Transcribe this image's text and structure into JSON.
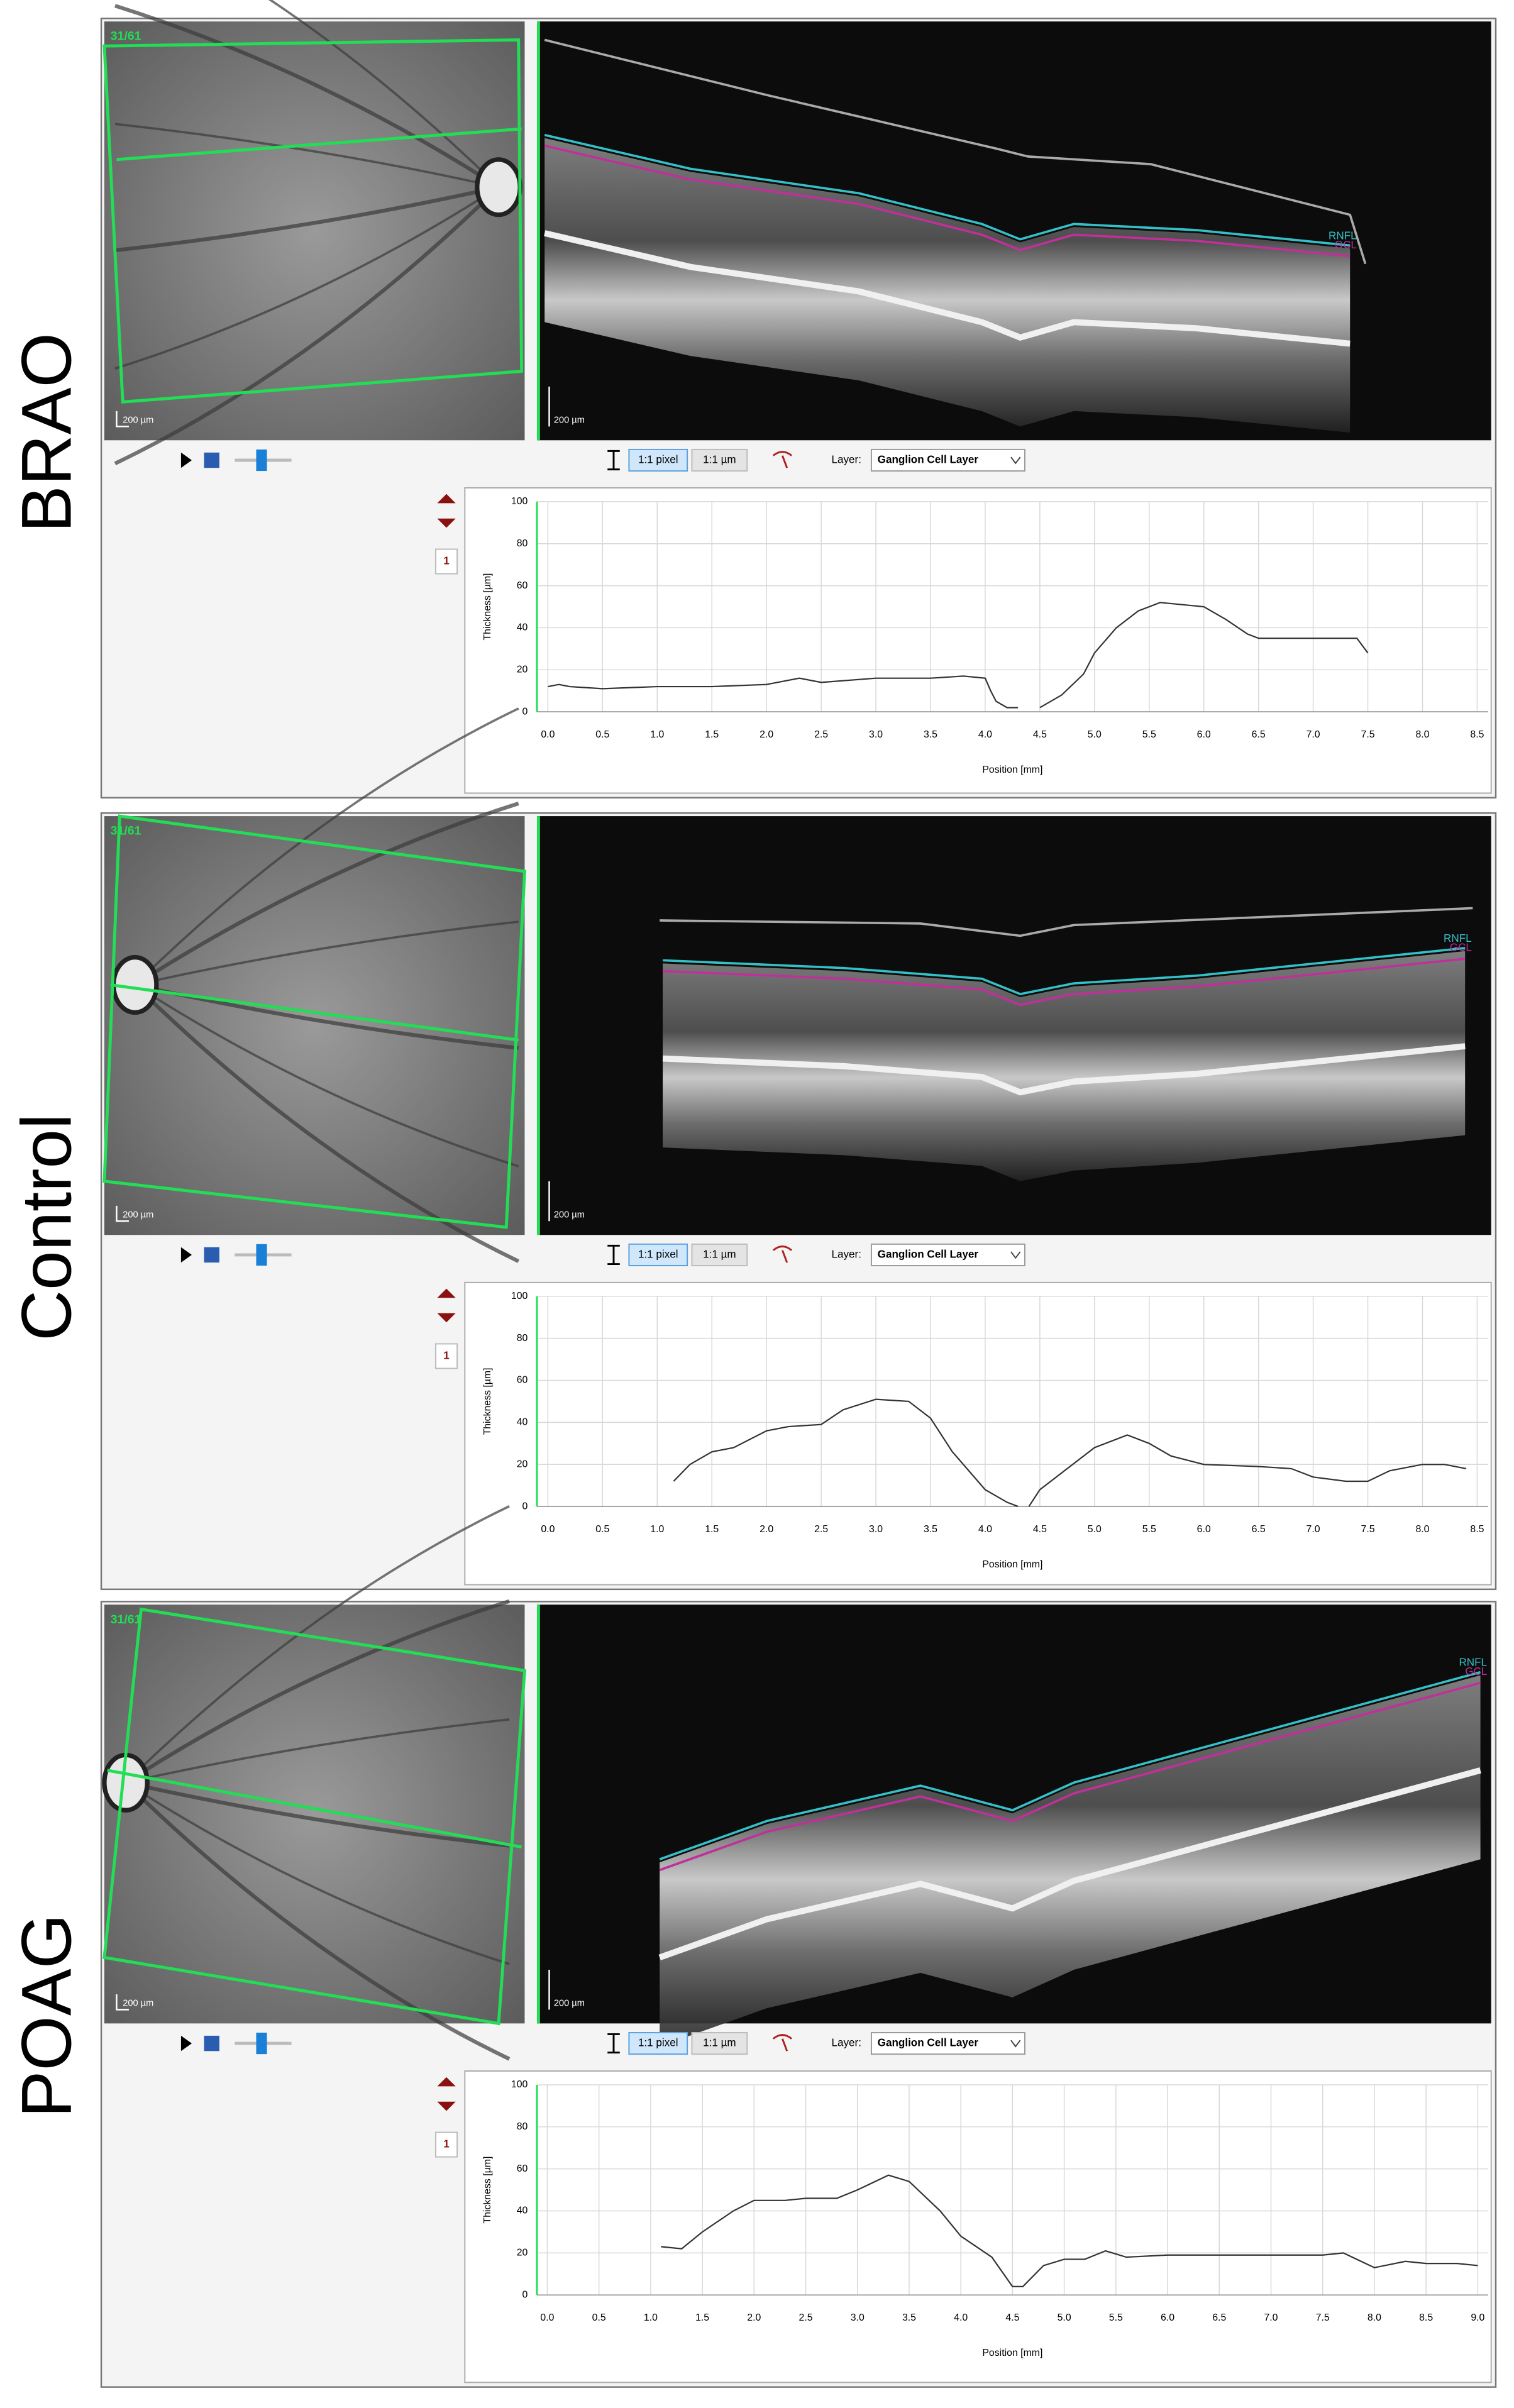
{
  "panels": [
    {
      "label": "BRAO",
      "fundus": {
        "frame": "31/61",
        "scale": "200 µm"
      },
      "oct": {
        "scale": "200 µm",
        "layers": [
          "RNFL",
          "GCL"
        ]
      },
      "toolbar": {
        "buttons": [
          "1:1 pixel",
          "1:1 µm"
        ],
        "layer_label": "Layer:",
        "layer": "Ganglion Cell Layer",
        "page": "1"
      }
    },
    {
      "label": "Control",
      "fundus": {
        "frame": "31/61",
        "scale": "200 µm"
      },
      "oct": {
        "scale": "200 µm",
        "layers": [
          "RNFL",
          "GCL"
        ]
      },
      "toolbar": {
        "buttons": [
          "1:1 pixel",
          "1:1 µm"
        ],
        "layer_label": "Layer:",
        "layer": "Ganglion Cell Layer",
        "page": "1"
      }
    },
    {
      "label": "POAG",
      "fundus": {
        "frame": "31/61",
        "scale": "200 µm"
      },
      "oct": {
        "scale": "200 µm",
        "layers": [
          "RNFL",
          "GCL"
        ]
      },
      "toolbar": {
        "buttons": [
          "1:1 pixel",
          "1:1 µm"
        ],
        "layer_label": "Layer:",
        "layer": "Ganglion Cell Layer",
        "page": "1"
      }
    }
  ],
  "chart_data": [
    {
      "type": "line",
      "x_label": "Position [mm]",
      "y_label": "Thickness [µm]",
      "color": "#333333",
      "grid": true,
      "x": [
        0,
        0.1,
        0.2,
        0.5,
        1.0,
        1.5,
        2.0,
        2.3,
        2.5,
        3.0,
        3.5,
        3.8,
        4.0,
        4.05,
        4.1,
        4.2,
        4.3,
        4.4,
        4.5,
        4.7,
        4.9,
        5.0,
        5.2,
        5.4,
        5.6,
        5.8,
        6.0,
        6.2,
        6.4,
        6.5,
        7.0,
        7.4,
        7.5
      ],
      "values": [
        12,
        13,
        12,
        11,
        12,
        12,
        13,
        16,
        14,
        16,
        16,
        17,
        16,
        10,
        5,
        2,
        2,
        null,
        2,
        8,
        18,
        28,
        40,
        48,
        52,
        51,
        50,
        44,
        37,
        35,
        35,
        35,
        28
      ],
      "xlim": [
        -0.1,
        8.6
      ],
      "ylim": [
        0,
        100
      ],
      "yticks": [
        0,
        20,
        40,
        60,
        80,
        100
      ],
      "xticks": [
        {
          "value": 0,
          "label": "0.0"
        },
        0.5,
        {
          "value": 1,
          "label": "1.0"
        },
        1.5,
        {
          "value": 2,
          "label": "2.0"
        },
        2.5,
        {
          "value": 3,
          "label": "3.0"
        },
        3.5,
        {
          "value": 4,
          "label": "4.0"
        },
        4.5,
        {
          "value": 5,
          "label": "5.0"
        },
        5.5,
        {
          "value": 6,
          "label": "6.0"
        },
        6.5,
        {
          "value": 7,
          "label": "7.0"
        },
        7.5,
        {
          "value": 8,
          "label": "8.0"
        },
        8.5
      ]
    },
    {
      "type": "line",
      "x_label": "Position [mm]",
      "y_label": "Thickness [µm]",
      "color": "#333333",
      "grid": true,
      "x": [
        1.15,
        1.3,
        1.5,
        1.7,
        2.0,
        2.2,
        2.5,
        2.7,
        3.0,
        3.3,
        3.5,
        3.7,
        4.0,
        4.2,
        4.3,
        4.35,
        4.4,
        4.5,
        4.7,
        5.0,
        5.3,
        5.5,
        5.7,
        6.0,
        6.5,
        6.8,
        7.0,
        7.3,
        7.5,
        7.7,
        8.0,
        8.2,
        8.4
      ],
      "values": [
        12,
        20,
        26,
        28,
        36,
        38,
        39,
        46,
        51,
        50,
        42,
        26,
        8,
        2,
        0,
        null,
        0,
        8,
        16,
        28,
        34,
        30,
        24,
        20,
        19,
        18,
        14,
        12,
        12,
        17,
        20,
        20,
        18
      ],
      "xlim": [
        -0.1,
        8.6
      ],
      "ylim": [
        0,
        100
      ],
      "yticks": [
        0,
        20,
        40,
        60,
        80,
        100
      ],
      "xticks": [
        {
          "value": 0,
          "label": "0.0"
        },
        0.5,
        {
          "value": 1,
          "label": "1.0"
        },
        1.5,
        {
          "value": 2,
          "label": "2.0"
        },
        2.5,
        {
          "value": 3,
          "label": "3.0"
        },
        3.5,
        {
          "value": 4,
          "label": "4.0"
        },
        4.5,
        {
          "value": 5,
          "label": "5.0"
        },
        5.5,
        {
          "value": 6,
          "label": "6.0"
        },
        6.5,
        {
          "value": 7,
          "label": "7.0"
        },
        7.5,
        {
          "value": 8,
          "label": "8.0"
        },
        8.5
      ]
    },
    {
      "type": "line",
      "x_label": "Position [mm]",
      "y_label": "Thickness [µm]",
      "color": "#333333",
      "grid": true,
      "x": [
        1.1,
        1.3,
        1.5,
        1.8,
        2.0,
        2.3,
        2.5,
        2.8,
        3.0,
        3.3,
        3.5,
        3.8,
        4.0,
        4.3,
        4.5,
        4.6,
        4.8,
        5.0,
        5.2,
        5.4,
        5.6,
        6.0,
        6.5,
        7.0,
        7.5,
        7.7,
        8.0,
        8.3,
        8.5,
        8.8,
        9.0
      ],
      "values": [
        23,
        22,
        30,
        40,
        45,
        45,
        46,
        46,
        50,
        57,
        54,
        40,
        28,
        18,
        4,
        4,
        14,
        17,
        17,
        21,
        18,
        19,
        19,
        19,
        19,
        20,
        13,
        16,
        15,
        15,
        14
      ],
      "xlim": [
        -0.1,
        9.1
      ],
      "ylim": [
        0,
        100
      ],
      "yticks": [
        0,
        20,
        40,
        60,
        80,
        100
      ],
      "xticks": [
        {
          "value": 0,
          "label": "0.0"
        },
        0.5,
        {
          "value": 1,
          "label": "1.0"
        },
        1.5,
        {
          "value": 2,
          "label": "2.0"
        },
        2.5,
        {
          "value": 3,
          "label": "3.0"
        },
        3.5,
        {
          "value": 4,
          "label": "4.0"
        },
        4.5,
        {
          "value": 5,
          "label": "5.0"
        },
        5.5,
        {
          "value": 6,
          "label": "6.0"
        },
        6.5,
        {
          "value": 7,
          "label": "7.0"
        },
        7.5,
        {
          "value": 8,
          "label": "8.0"
        },
        8.5,
        {
          "value": 9,
          "label": "9.0"
        }
      ]
    }
  ]
}
